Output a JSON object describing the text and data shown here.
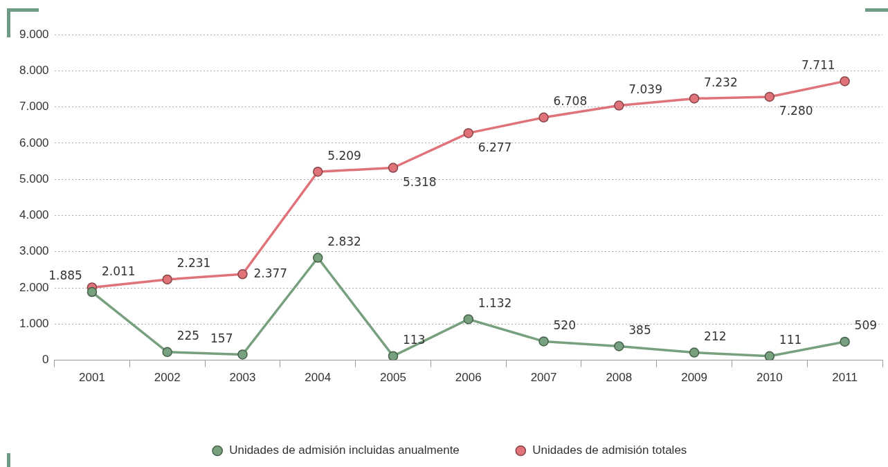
{
  "chart_data": {
    "type": "line",
    "categories": [
      "2001",
      "2002",
      "2003",
      "2004",
      "2005",
      "2006",
      "2007",
      "2008",
      "2009",
      "2010",
      "2011"
    ],
    "series": [
      {
        "name": "Unidades de admisión incluidas anualmente",
        "color": "#76a07e",
        "values": [
          1885,
          225,
          157,
          2832,
          113,
          1132,
          520,
          385,
          212,
          111,
          509
        ],
        "value_labels": [
          "1.885",
          "225",
          "157",
          "2.832",
          "113",
          "1.132",
          "520",
          "385",
          "212",
          "111",
          "509"
        ]
      },
      {
        "name": "Unidades de admisión totales",
        "color": "#e0727a",
        "values": [
          2011,
          2231,
          2377,
          5209,
          5318,
          6277,
          6708,
          7039,
          7232,
          7280,
          7711
        ],
        "value_labels": [
          "2.011",
          "2.231",
          "2.377",
          "5.209",
          "5.318",
          "6.277",
          "6.708",
          "7.039",
          "7.232",
          "7.280",
          "7.711"
        ]
      }
    ],
    "ylim": [
      0,
      9000
    ],
    "yticks": [
      {
        "value": 0,
        "label": "0"
      },
      {
        "value": 1000,
        "label": "1.000"
      },
      {
        "value": 2000,
        "label": "2.000"
      },
      {
        "value": 3000,
        "label": "3.000"
      },
      {
        "value": 4000,
        "label": "4.000"
      },
      {
        "value": 5000,
        "label": "5.000"
      },
      {
        "value": 6000,
        "label": "6.000"
      },
      {
        "value": 7000,
        "label": "7.000"
      },
      {
        "value": 8000,
        "label": "8.000"
      },
      {
        "value": 9000,
        "label": "9.000"
      }
    ],
    "grid": "y",
    "legend": "bottom",
    "marker": "circle",
    "line_style": "solid"
  }
}
